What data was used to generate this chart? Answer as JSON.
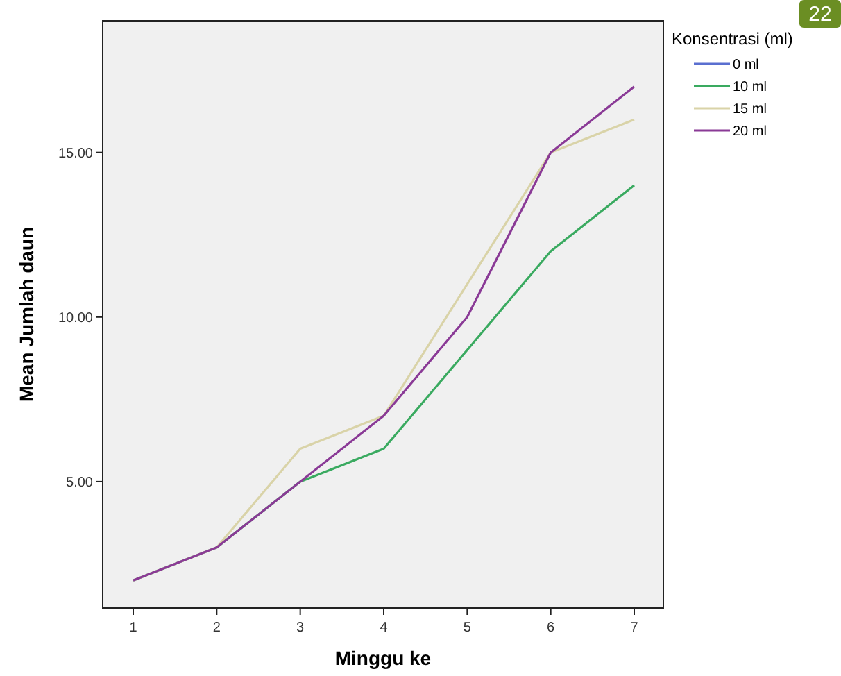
{
  "chart_data": {
    "type": "line",
    "xlabel": "Minggu ke",
    "ylabel": "Mean Jumlah daun",
    "legend_title": "Konsentrasi (ml)",
    "legend": "top right",
    "grid": false,
    "marker": "none",
    "line_style": "solid",
    "categories": [
      "1",
      "2",
      "3",
      "4",
      "5",
      "6",
      "7"
    ],
    "ylim": [
      1.16,
      19
    ],
    "yticks": [
      {
        "value": 5,
        "label": "5.00"
      },
      {
        "value": 10,
        "label": "10.00"
      },
      {
        "value": 15,
        "label": "15.00"
      }
    ],
    "series": [
      {
        "name": "0 ml",
        "color": "#5a6fd0",
        "values": [
          null,
          null,
          null,
          null,
          null,
          null,
          null
        ]
      },
      {
        "name": "10 ml",
        "color": "#3aaa60",
        "values": [
          2,
          3,
          5,
          6,
          9,
          12,
          14
        ]
      },
      {
        "name": "15 ml",
        "color": "#d9d3a8",
        "values": [
          2,
          3,
          6,
          7,
          11,
          15,
          16
        ]
      },
      {
        "name": "20 ml",
        "color": "#8a3a96",
        "values": [
          2,
          3,
          5,
          7,
          10,
          15,
          17
        ]
      }
    ],
    "annotations": [
      "22"
    ]
  }
}
